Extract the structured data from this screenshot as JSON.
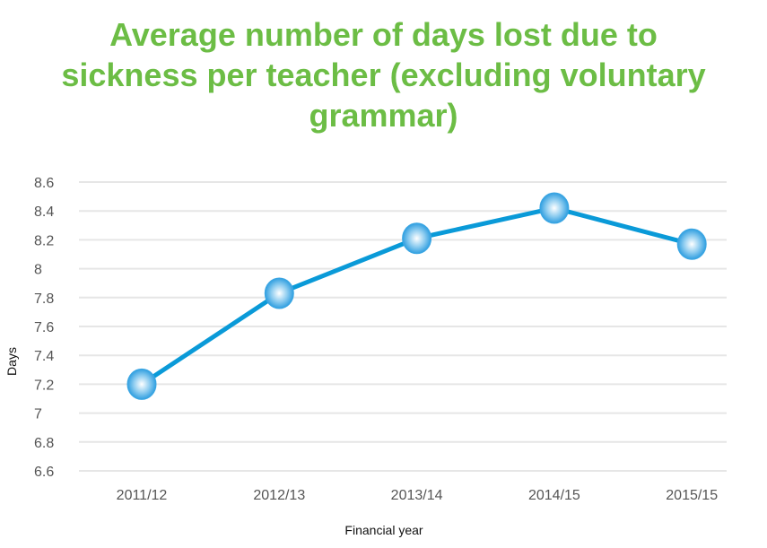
{
  "chart_data": {
    "type": "line",
    "title": "Average number of days lost due to sickness per teacher (excluding voluntary grammar)",
    "xlabel": "Financial year",
    "ylabel": "Days",
    "categories": [
      "2011/12",
      "2012/13",
      "2013/14",
      "2014/15",
      "2015/15"
    ],
    "series": [
      {
        "name": "Days",
        "values": [
          7.2,
          7.83,
          8.21,
          8.42,
          8.17
        ]
      }
    ],
    "ylim": [
      6.6,
      8.6
    ],
    "yticks": [
      "6.6",
      "6.8",
      "7",
      "7.2",
      "7.4",
      "7.6",
      "7.8",
      "8",
      "8.2",
      "8.4",
      "8.6"
    ],
    "grid": true,
    "legend": "none",
    "colors": {
      "title": "#6cbd45",
      "line": "#0a9ad8",
      "marker": "#5fb4e6",
      "grid": "#e6e6e6"
    }
  }
}
